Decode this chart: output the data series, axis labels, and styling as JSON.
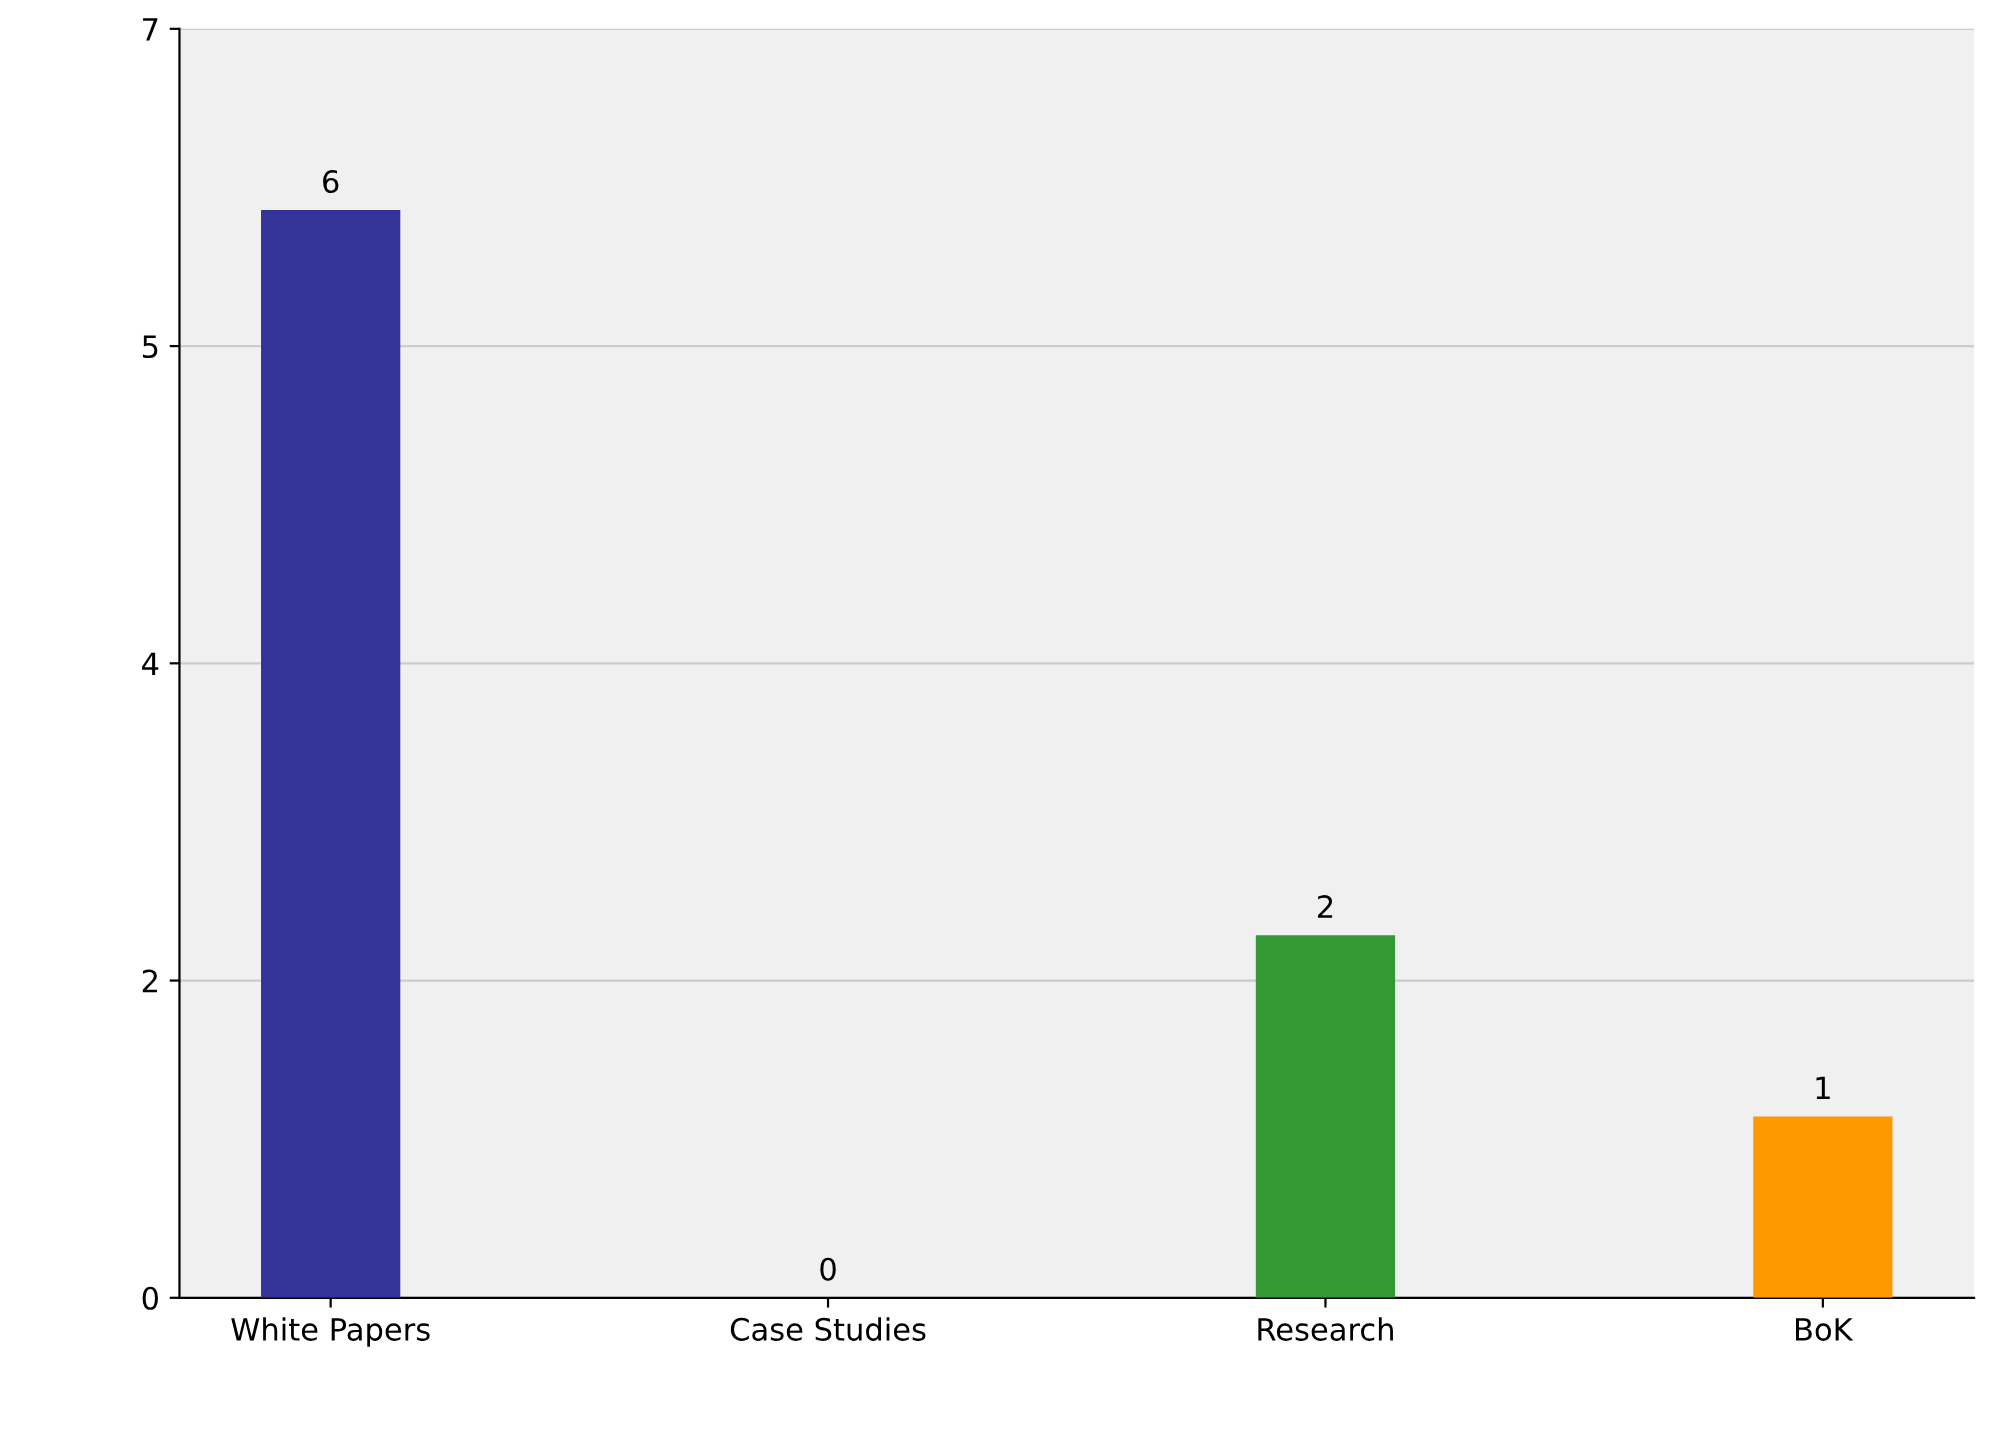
{
  "chart_data": {
    "type": "bar",
    "categories": [
      "White Papers",
      "Case Studies",
      "Research",
      "BoK"
    ],
    "values": [
      6,
      0,
      2,
      1
    ],
    "colors": [
      "#333399",
      "#ffff99",
      "#339933",
      "#ff9900"
    ],
    "ylim": [
      0,
      7
    ],
    "yticks": [
      0,
      {
        "value": 1.75,
        "label": "2"
      },
      {
        "value": 3.5,
        "label": "4"
      },
      {
        "value": 5.25,
        "label": "5"
      },
      7
    ],
    "grid": "y",
    "data_labels": true
  }
}
